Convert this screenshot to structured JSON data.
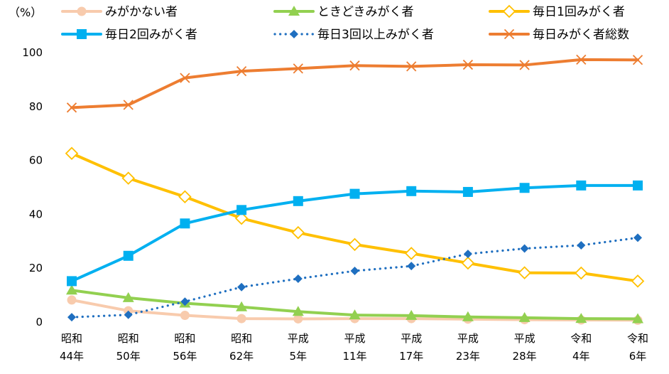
{
  "chart_data": {
    "type": "line",
    "unit_label": "（%）",
    "categories": [
      [
        "昭和",
        "44年"
      ],
      [
        "昭和",
        "50年"
      ],
      [
        "昭和",
        "56年"
      ],
      [
        "昭和",
        "62年"
      ],
      [
        "平成",
        "5年"
      ],
      [
        "平成",
        "11年"
      ],
      [
        "平成",
        "17年"
      ],
      [
        "平成",
        "23年"
      ],
      [
        "平成",
        "28年"
      ],
      [
        "令和",
        "4年"
      ],
      [
        "令和",
        "6年"
      ]
    ],
    "ylim": [
      0,
      100
    ],
    "yticks": [
      0,
      20,
      40,
      60,
      80,
      100
    ],
    "grid": false,
    "legend_position": "top",
    "series": [
      {
        "name": "みがかない者",
        "color": "#F8CBAD",
        "marker": "circle",
        "line_style": "solid",
        "values": [
          8.2,
          4.2,
          2.5,
          1.3,
          1.2,
          1.3,
          1.3,
          1.1,
          0.9,
          0.8,
          0.7
        ]
      },
      {
        "name": "ときどきみがく者",
        "color": "#92D050",
        "marker": "triangle",
        "line_style": "solid",
        "values": [
          11.8,
          9.0,
          7.0,
          5.6,
          3.9,
          2.6,
          2.4,
          1.9,
          1.6,
          1.3,
          1.2
        ]
      },
      {
        "name": "毎日1回みがく者",
        "color": "#FFC000",
        "marker": "diamond-open",
        "line_style": "solid",
        "values": [
          62.6,
          53.4,
          46.5,
          38.5,
          33.2,
          28.8,
          25.5,
          21.9,
          18.3,
          18.2,
          15.2
        ]
      },
      {
        "name": "毎日2回みがく者",
        "color": "#00B0F0",
        "marker": "square",
        "line_style": "solid",
        "values": [
          15.2,
          24.6,
          36.6,
          41.6,
          44.9,
          47.6,
          48.6,
          48.3,
          49.8,
          50.7,
          50.7
        ]
      },
      {
        "name": "毎日3回以上みがく者",
        "color": "#1F6FC0",
        "marker": "diamond",
        "line_style": "dotted",
        "values": [
          1.8,
          2.7,
          7.6,
          13.0,
          16.1,
          19.0,
          20.8,
          25.3,
          27.3,
          28.5,
          31.3
        ]
      },
      {
        "name": "毎日みがく者総数",
        "color": "#ED7D31",
        "marker": "x",
        "line_style": "solid",
        "values": [
          79.6,
          80.6,
          90.6,
          93.1,
          94.1,
          95.2,
          94.9,
          95.5,
          95.4,
          97.4,
          97.3
        ]
      }
    ],
    "legend_rows": [
      [
        0,
        1,
        2
      ],
      [
        3,
        4,
        5
      ]
    ]
  }
}
